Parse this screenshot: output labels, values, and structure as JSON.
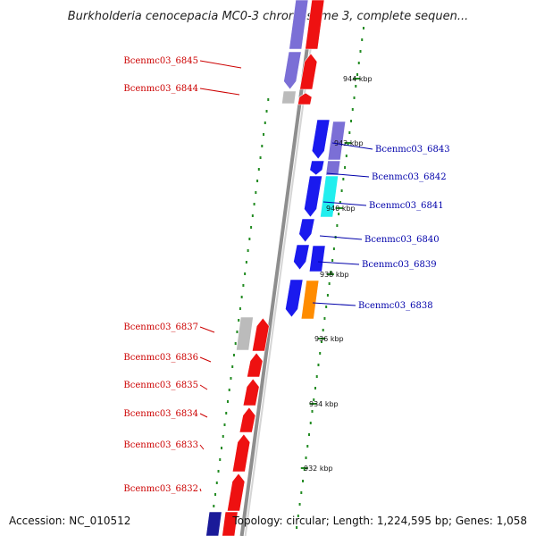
{
  "title": "Burkholderia cenocepacia MC0-3 chromosome 3, complete sequen...",
  "footer": {
    "accession": "Accession: NC_010512",
    "summary": "Topology: circular; Length: 1,224,595 bp; Genes: 1,058"
  },
  "colors": {
    "red": "#ee1111",
    "blue": "#1a1aee",
    "slate": "#7b6fd6",
    "gray": "#bbbbbb",
    "cyan": "#22eeee",
    "orange": "#ff8c00",
    "navy": "#1a1a99",
    "label_red": "#cc0000",
    "label_blue": "#0000aa",
    "tick_green": "#228b22"
  },
  "left_labels": [
    {
      "text": "Bcenmc03_6845"
    },
    {
      "text": "Bcenmc03_6844"
    },
    {
      "text": "Bcenmc03_6837"
    },
    {
      "text": "Bcenmc03_6836"
    },
    {
      "text": "Bcenmc03_6835"
    },
    {
      "text": "Bcenmc03_6834"
    },
    {
      "text": "Bcenmc03_6833"
    },
    {
      "text": "Bcenmc03_6832"
    }
  ],
  "right_labels": [
    {
      "text": "Bcenmc03_6843"
    },
    {
      "text": "Bcenmc03_6842"
    },
    {
      "text": "Bcenmc03_6841"
    },
    {
      "text": "Bcenmc03_6840"
    },
    {
      "text": "Bcenmc03_6839"
    },
    {
      "text": "Bcenmc03_6838"
    }
  ],
  "ticks": [
    {
      "label": "944 kbp"
    },
    {
      "label": "942 kbp"
    },
    {
      "label": "940 kbp"
    },
    {
      "label": "938 kbp"
    },
    {
      "label": "936 kbp"
    },
    {
      "label": "934 kbp"
    },
    {
      "label": "932 kbp"
    }
  ]
}
